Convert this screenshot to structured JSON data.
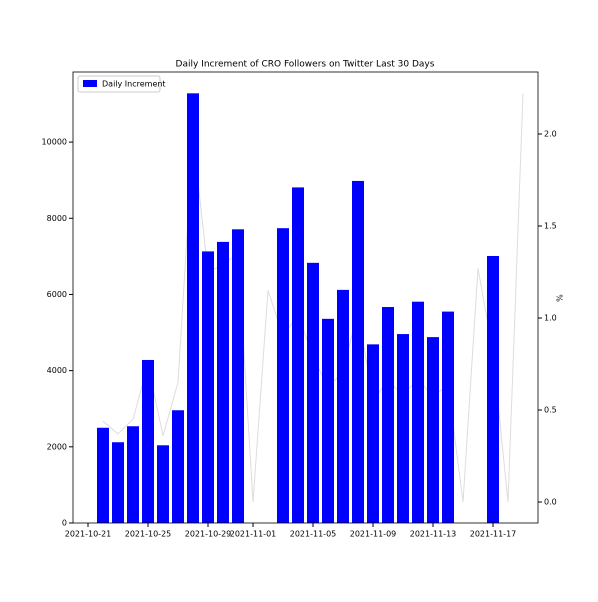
{
  "chart_data": {
    "type": "bar",
    "title": "Daily Increment of CRO Followers on Twitter Last 30 Days",
    "y2label": "%",
    "x": [
      "2021-10-22",
      "2021-10-23",
      "2021-10-24",
      "2021-10-25",
      "2021-10-26",
      "2021-10-27",
      "2021-10-28",
      "2021-10-29",
      "2021-10-30",
      "2021-10-31",
      "2021-11-01",
      "2021-11-02",
      "2021-11-03",
      "2021-11-04",
      "2021-11-05",
      "2021-11-06",
      "2021-11-07",
      "2021-11-08",
      "2021-11-09",
      "2021-11-10",
      "2021-11-11",
      "2021-11-12",
      "2021-11-13",
      "2021-11-14",
      "2021-11-15",
      "2021-11-16",
      "2021-11-17",
      "2021-11-18",
      "2021-11-19"
    ],
    "series": [
      {
        "name": "Daily Increment",
        "color": "#0000ff",
        "values": [
          2500,
          2120,
          2540,
          4280,
          2040,
          2960,
          11280,
          7130,
          7380,
          7710,
          null,
          null,
          7740,
          8810,
          6830,
          5360,
          6120,
          8980,
          4690,
          5670,
          4960,
          5810,
          4880,
          5550,
          null,
          null,
          7010,
          null,
          null
        ]
      },
      {
        "type": "line",
        "axis": "y2",
        "color": "#dddddd",
        "values": [
          0.44,
          0.37,
          0.45,
          0.75,
          0.36,
          0.65,
          1.98,
          1.25,
          1.29,
          1.35,
          0.0,
          1.15,
          0.9,
          1.02,
          0.79,
          0.62,
          0.71,
          1.04,
          0.55,
          0.66,
          0.58,
          0.67,
          0.57,
          0.64,
          0.0,
          1.27,
          0.81,
          0.0,
          2.22
        ]
      }
    ],
    "xlim": [
      "2021-10-20",
      "2021-11-20"
    ],
    "xticks": [
      "2021-10-21",
      "2021-10-25",
      "2021-10-29",
      "2021-11-01",
      "2021-11-05",
      "2021-11-09",
      "2021-11-13",
      "2021-11-17"
    ],
    "ylim": [
      0,
      11840
    ],
    "yticks": [
      0,
      2000,
      4000,
      6000,
      8000,
      10000
    ],
    "y2lim": [
      -0.114,
      2.337
    ],
    "y2ticks": [
      {
        "value": 0,
        "label": "0.0"
      },
      0.5,
      {
        "value": 1,
        "label": "1.0"
      },
      1.5,
      {
        "value": 2,
        "label": "2.0"
      }
    ],
    "legend": "upper left"
  }
}
